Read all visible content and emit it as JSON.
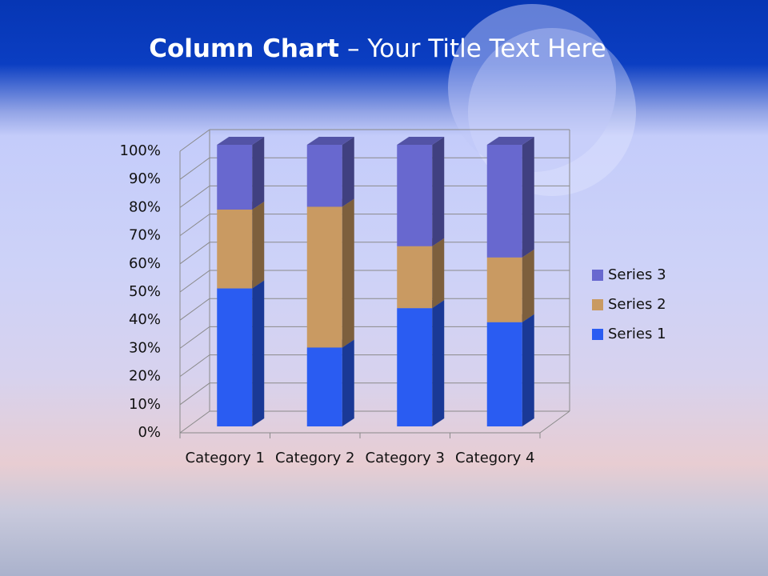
{
  "chart_data": {
    "type": "bar",
    "title_parts": [
      "Column Chart",
      "– Your Title Text Here"
    ],
    "stacked": true,
    "categories": [
      "Category 1",
      "Category 2",
      "Category 3",
      "Category 4"
    ],
    "series": [
      {
        "name": "Series 1",
        "color": "#2a5cf2",
        "values": [
          49,
          28,
          42,
          37
        ]
      },
      {
        "name": "Series 2",
        "color": "#c99a62",
        "values": [
          28,
          50,
          22,
          23
        ]
      },
      {
        "name": "Series 3",
        "color": "#6868cf",
        "values": [
          23,
          22,
          36,
          40
        ]
      }
    ],
    "ylim": [
      0,
      100
    ],
    "yticks": [
      {
        "value": 0,
        "label": "0%"
      },
      {
        "value": 10,
        "label": "10%"
      },
      {
        "value": 20,
        "label": "20%"
      },
      {
        "value": 30,
        "label": "30%"
      },
      {
        "value": 40,
        "label": "40%"
      },
      {
        "value": 50,
        "label": "50%"
      },
      {
        "value": 60,
        "label": "60%"
      },
      {
        "value": 70,
        "label": "70%"
      },
      {
        "value": 80,
        "label": "80%"
      },
      {
        "value": 90,
        "label": "90%"
      },
      {
        "value": 100,
        "label": "100%"
      }
    ],
    "grid": true,
    "legend": "right"
  }
}
